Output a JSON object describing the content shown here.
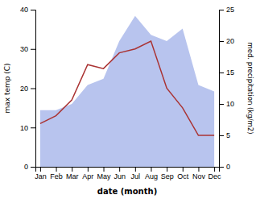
{
  "chart_data": {
    "type": "line",
    "categories": [
      "Jan",
      "Feb",
      "Mar",
      "Apr",
      "May",
      "Jun",
      "Jul",
      "Aug",
      "Sep",
      "Oct",
      "Nov",
      "Dec"
    ],
    "series": [
      {
        "type": "area",
        "color": "#b8c4ee",
        "axis": "y2",
        "values": [
          9,
          9,
          10,
          13,
          14,
          20,
          24,
          21,
          20,
          22,
          13,
          12
        ]
      },
      {
        "type": "line",
        "color": "#aa3333",
        "values": [
          11,
          13,
          17,
          26,
          25,
          29,
          30,
          32,
          20,
          15,
          8,
          8
        ]
      }
    ],
    "xlabel": "date (month)",
    "ylabel": "max temp (C)",
    "y2label": "med. precipitation (kg/m2)",
    "ylim": [
      0,
      40
    ],
    "yticks": [
      0,
      10,
      20,
      30,
      40
    ],
    "y2lim": [
      0,
      25
    ],
    "y2ticks": [
      0,
      5,
      10,
      15,
      20,
      25
    ]
  }
}
